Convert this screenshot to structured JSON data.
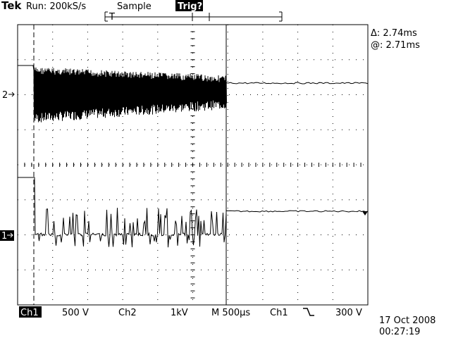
{
  "header": {
    "brand": "Tek",
    "run": "Run: 200kS/s",
    "mode": "Sample",
    "trigger_status": "Trig?",
    "trigger_marker": "T"
  },
  "cursors": {
    "delta": "Δ: 2.74ms",
    "at": "@: 2.71ms"
  },
  "channel_markers": {
    "ch2": "2",
    "ch1": "1"
  },
  "footer": {
    "ch1": "Ch1",
    "ch1_scale": "500 V",
    "ch2": "Ch2",
    "ch2_scale": "1kV",
    "timebase": "M 500µs",
    "trigger_source": "Ch1",
    "trigger_level": "300 V",
    "date": "17 Oct 2008",
    "time": "00:27:19"
  }
}
